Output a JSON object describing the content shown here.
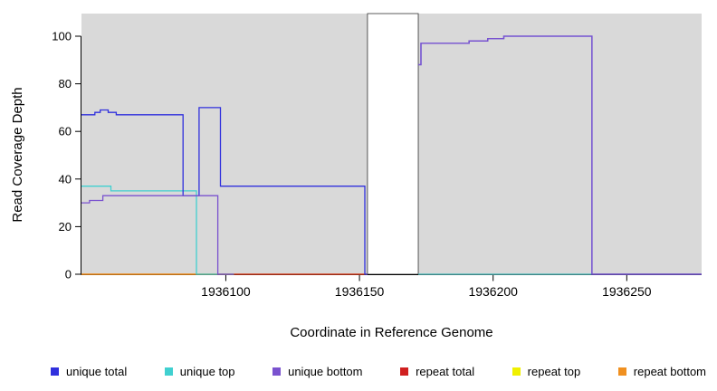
{
  "figure": {
    "background": "#ffffff",
    "plot_background": "#d9d9d9",
    "axis_color": "#000000",
    "tick_label_color": "#000000"
  },
  "chart_data": {
    "type": "line",
    "title": "",
    "xlabel": "Coordinate in Reference Genome",
    "ylabel": "Read Coverage Depth",
    "xlim": [
      1936046,
      1936278
    ],
    "ylim": [
      0,
      109.5
    ],
    "xticks": [
      1936100,
      1936150,
      1936200,
      1936250
    ],
    "yticks": [
      0,
      20,
      40,
      60,
      80,
      100
    ],
    "grid": false,
    "legend_position": "bottom",
    "gap_region": {
      "x_start": 1936153,
      "x_end": 1936172,
      "fill": "#ffffff",
      "border": "#333333"
    },
    "series": [
      {
        "name": "repeat top",
        "color": "#f0f000",
        "points": [
          [
            1936046,
            0
          ],
          [
            1936153,
            0
          ]
        ]
      },
      {
        "name": "repeat total",
        "color": "#d02020",
        "points": [
          [
            1936046,
            0
          ],
          [
            1936153,
            0
          ],
          null,
          [
            1936172,
            0
          ],
          [
            1936278,
            0
          ]
        ]
      },
      {
        "name": "repeat bottom",
        "color": "#f09020",
        "points": [
          [
            1936046,
            0
          ],
          [
            1936103,
            0
          ]
        ]
      },
      {
        "name": "unique top",
        "color": "#40d0d0",
        "points": [
          [
            1936046,
            37
          ],
          [
            1936057,
            37
          ],
          [
            1936057,
            35
          ],
          [
            1936089,
            35
          ],
          [
            1936089,
            0
          ],
          [
            1936103,
            0
          ],
          null,
          [
            1936172,
            0
          ],
          [
            1936278,
            0
          ]
        ]
      },
      {
        "name": "unique total",
        "color": "#3030dd",
        "points": [
          [
            1936046,
            67
          ],
          [
            1936051,
            67
          ],
          [
            1936051,
            68
          ],
          [
            1936053,
            68
          ],
          [
            1936053,
            69
          ],
          [
            1936056,
            69
          ],
          [
            1936056,
            68
          ],
          [
            1936059,
            68
          ],
          [
            1936059,
            67
          ],
          [
            1936084,
            67
          ],
          [
            1936084,
            33
          ],
          [
            1936090,
            33
          ],
          [
            1936090,
            70
          ],
          [
            1936098,
            70
          ],
          [
            1936098,
            37
          ],
          [
            1936152,
            37
          ],
          [
            1936152,
            0
          ],
          [
            1936153,
            0
          ],
          null,
          [
            1936172,
            88
          ],
          [
            1936173,
            88
          ],
          [
            1936173,
            97
          ],
          [
            1936191,
            97
          ],
          [
            1936191,
            98
          ],
          [
            1936198,
            98
          ],
          [
            1936198,
            99
          ],
          [
            1936204,
            99
          ],
          [
            1936204,
            100
          ],
          [
            1936237,
            100
          ],
          [
            1936237,
            0
          ],
          [
            1936278,
            0
          ]
        ]
      },
      {
        "name": "unique bottom",
        "color": "#7a52cf",
        "points": [
          [
            1936046,
            30
          ],
          [
            1936049,
            30
          ],
          [
            1936049,
            31
          ],
          [
            1936054,
            31
          ],
          [
            1936054,
            33
          ],
          [
            1936097,
            33
          ],
          [
            1936097,
            0
          ],
          [
            1936103,
            0
          ],
          null,
          [
            1936172,
            88
          ],
          [
            1936173,
            88
          ],
          [
            1936173,
            97
          ],
          [
            1936191,
            97
          ],
          [
            1936191,
            98
          ],
          [
            1936198,
            98
          ],
          [
            1936198,
            99
          ],
          [
            1936204,
            99
          ],
          [
            1936204,
            100
          ],
          [
            1936237,
            100
          ],
          [
            1936237,
            0
          ],
          [
            1936278,
            0
          ]
        ]
      }
    ],
    "legend": [
      {
        "label": "unique total",
        "color": "#3030dd"
      },
      {
        "label": "unique top",
        "color": "#40d0d0"
      },
      {
        "label": "unique bottom",
        "color": "#7a52cf"
      },
      {
        "label": "repeat total",
        "color": "#d02020"
      },
      {
        "label": "repeat top",
        "color": "#f0f000"
      },
      {
        "label": "repeat bottom",
        "color": "#f09020"
      }
    ]
  }
}
